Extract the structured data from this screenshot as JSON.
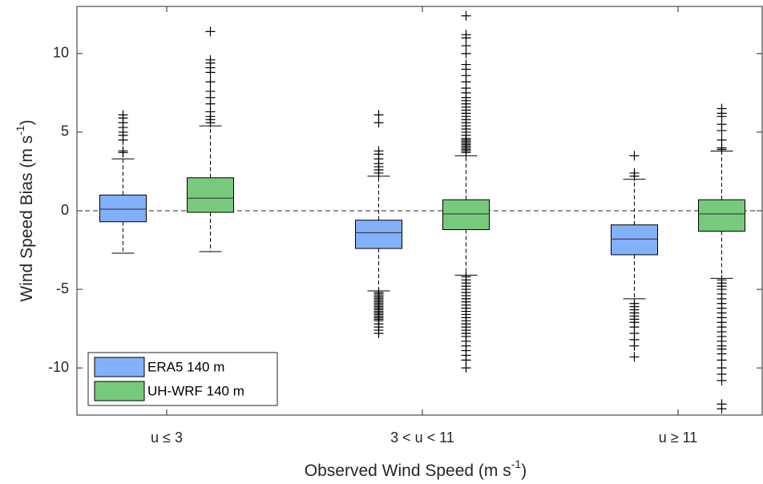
{
  "chart_data": {
    "type": "box",
    "xlabel": [
      "Observed Wind Speed (m s",
      "-1",
      ")"
    ],
    "ylabel": [
      "Wind Speed Bias (m s",
      "-1",
      ")"
    ],
    "categories": [
      "u ≤ 3",
      "3 < u < 11",
      "u ≥ 11"
    ],
    "ylim": [
      -13,
      13
    ],
    "yticks": [
      -10,
      -5,
      0,
      5,
      10
    ],
    "reference_line": 0,
    "legend": "lower left",
    "series": [
      {
        "name": "ERA5 140 m",
        "color": "#80b1fa",
        "boxes": [
          {
            "whisker_low": -2.7,
            "q1": -0.7,
            "median": 0.1,
            "q3": 1.0,
            "whisker_high": 3.3,
            "outliers": [
              3.7,
              3.8,
              4.5,
              4.8,
              5.0,
              5.3,
              5.6,
              5.9,
              6.1
            ]
          },
          {
            "whisker_low": -5.1,
            "q1": -2.4,
            "median": -1.4,
            "q3": -0.6,
            "whisker_high": 2.2,
            "outliers": [
              2.4,
              2.6,
              2.8,
              3.0,
              3.3,
              3.6,
              3.8,
              5.6,
              6.1,
              -5.2,
              -5.3,
              -5.4,
              -5.5,
              -5.6,
              -5.7,
              -5.8,
              -5.9,
              -6.0,
              -6.1,
              -6.2,
              -6.3,
              -6.4,
              -6.5,
              -6.6,
              -6.7,
              -6.8,
              -6.9,
              -7.0,
              -7.2,
              -7.4,
              -7.6,
              -7.8
            ]
          },
          {
            "whisker_low": -5.6,
            "q1": -2.8,
            "median": -1.8,
            "q3": -0.9,
            "whisker_high": 2.0,
            "outliers": [
              2.2,
              2.4,
              3.5,
              -5.9,
              -6.1,
              -6.3,
              -6.5,
              -6.7,
              -6.9,
              -7.1,
              -7.4,
              -7.8,
              -8.2,
              -8.6,
              -9.3
            ]
          }
        ]
      },
      {
        "name": "UH-WRF 140 m",
        "color": "#77c97b",
        "boxes": [
          {
            "whisker_low": -2.6,
            "q1": -0.1,
            "median": 0.8,
            "q3": 2.1,
            "whisker_high": 5.4,
            "outliers": [
              5.6,
              5.8,
              6.0,
              6.3,
              6.8,
              7.2,
              7.6,
              8.2,
              8.8,
              9.1,
              9.4,
              9.6,
              11.4
            ]
          },
          {
            "whisker_low": -4.1,
            "q1": -1.2,
            "median": -0.2,
            "q3": 0.7,
            "whisker_high": 3.5,
            "outliers": [
              3.7,
              3.8,
              3.9,
              4.0,
              4.1,
              4.2,
              4.3,
              4.4,
              4.5,
              4.6,
              4.8,
              5.0,
              5.2,
              5.4,
              5.6,
              5.8,
              6.0,
              6.2,
              6.4,
              6.6,
              6.8,
              7.0,
              7.2,
              7.5,
              7.8,
              8.2,
              8.6,
              9.0,
              9.3,
              10.0,
              10.5,
              11.0,
              11.2,
              12.4,
              -4.2,
              -4.4,
              -4.6,
              -4.8,
              -5.0,
              -5.2,
              -5.4,
              -5.6,
              -5.8,
              -6.0,
              -6.2,
              -6.4,
              -6.6,
              -6.8,
              -7.0,
              -7.2,
              -7.4,
              -7.6,
              -7.8,
              -8.0,
              -8.3,
              -8.6,
              -8.9,
              -9.2,
              -9.5,
              -10.0
            ]
          },
          {
            "whisker_low": -4.3,
            "q1": -1.3,
            "median": -0.2,
            "q3": 0.7,
            "whisker_high": 3.8,
            "outliers": [
              3.9,
              4.0,
              4.5,
              5.1,
              5.5,
              6.0,
              6.2,
              6.5,
              -4.4,
              -4.6,
              -4.8,
              -5.0,
              -5.3,
              -5.6,
              -5.9,
              -6.2,
              -6.5,
              -6.8,
              -7.1,
              -7.4,
              -7.7,
              -8.0,
              -8.3,
              -8.6,
              -8.8,
              -9.1,
              -9.5,
              -10.0,
              -10.4,
              -10.8,
              -12.3,
              -12.6
            ]
          }
        ]
      }
    ]
  }
}
